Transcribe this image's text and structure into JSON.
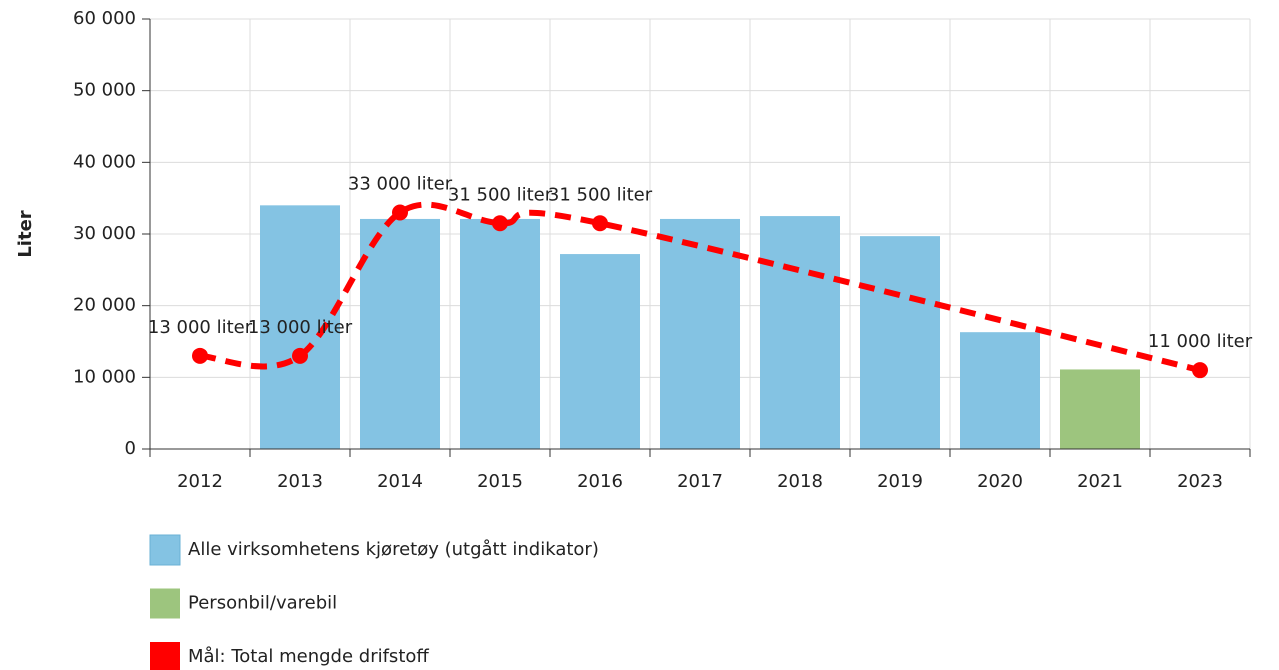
{
  "chart_data": {
    "type": "bar",
    "y_label": "Liter",
    "categories": [
      "2012",
      "2013",
      "2014",
      "2015",
      "2016",
      "2017",
      "2018",
      "2019",
      "2020",
      "2021",
      "2023"
    ],
    "ylim": [
      0,
      60000
    ],
    "yticks": [
      {
        "value": 0,
        "label": "0"
      },
      {
        "value": 10000,
        "label": "10 000"
      },
      {
        "value": 20000,
        "label": "20 000"
      },
      {
        "value": 30000,
        "label": "30 000"
      },
      {
        "value": 40000,
        "label": "40 000"
      },
      {
        "value": 50000,
        "label": "50 000"
      },
      {
        "value": 60000,
        "label": "60 000"
      }
    ],
    "grid": true,
    "legend": "bottom-left",
    "series": [
      {
        "name": "Alle virksomhetens kjøretøy (utgått indikator)",
        "color": "#84c3e3",
        "type": "bar",
        "values": [
          null,
          34000,
          32100,
          32100,
          27200,
          32100,
          32500,
          29700,
          16300,
          null,
          null
        ]
      },
      {
        "name": "Personbil/varebil",
        "color": "#9dc57e",
        "type": "bar",
        "values": [
          null,
          null,
          null,
          null,
          null,
          null,
          null,
          null,
          null,
          11100,
          null
        ]
      },
      {
        "name": "Mål: Total mengde drifstoff",
        "color": "#ff0000",
        "type": "line",
        "x": [
          "2012",
          "2013",
          "2014",
          "2015",
          "2016",
          "2023"
        ],
        "values": [
          13000,
          13000,
          33000,
          31500,
          31500,
          11000
        ],
        "value_labels": [
          "13 000 liter",
          "13 000 liter",
          "33 000 liter",
          "31 500 liter",
          "31 500 liter",
          "11 000 liter"
        ]
      }
    ]
  }
}
